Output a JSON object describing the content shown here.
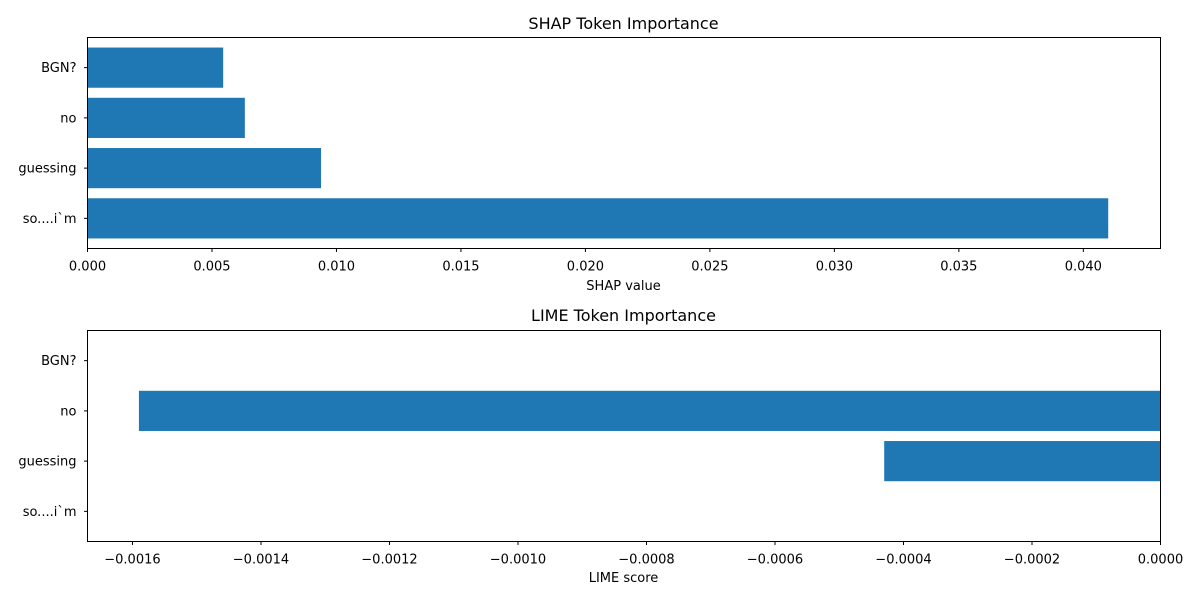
{
  "chart_data": [
    {
      "type": "bar",
      "orientation": "horizontal",
      "title": "SHAP Token Importance",
      "xlabel": "SHAP value",
      "ylabel": "",
      "categories": [
        "so....i`m",
        "guessing",
        "no",
        "BGN?"
      ],
      "values": [
        0.041,
        0.00938,
        0.00632,
        0.00545
      ],
      "xlim": [
        0,
        0.0431
      ],
      "xticks": [
        0.0,
        0.005,
        0.01,
        0.015,
        0.02,
        0.025,
        0.03,
        0.035,
        0.04
      ],
      "xtick_labels": [
        "0.000",
        "0.005",
        "0.010",
        "0.015",
        "0.020",
        "0.025",
        "0.030",
        "0.035",
        "0.040"
      ],
      "bar_color": "#1f77b4",
      "grid": false
    },
    {
      "type": "bar",
      "orientation": "horizontal",
      "title": "LIME Token Importance",
      "xlabel": "LIME score",
      "ylabel": "",
      "categories": [
        "so....i`m",
        "guessing",
        "no",
        "BGN?"
      ],
      "values": [
        0.0,
        -0.00043,
        -0.00159,
        0.0
      ],
      "xlim": [
        -0.00167,
        0.0
      ],
      "xticks": [
        -0.0016,
        -0.0014,
        -0.0012,
        -0.001,
        -0.0008,
        -0.0006,
        -0.0004,
        -0.0002,
        0.0
      ],
      "xtick_labels": [
        "−0.0016",
        "−0.0014",
        "−0.0012",
        "−0.0010",
        "−0.0008",
        "−0.0006",
        "−0.0004",
        "−0.0002",
        "0.0000"
      ],
      "bar_color": "#1f77b4",
      "grid": false
    }
  ]
}
